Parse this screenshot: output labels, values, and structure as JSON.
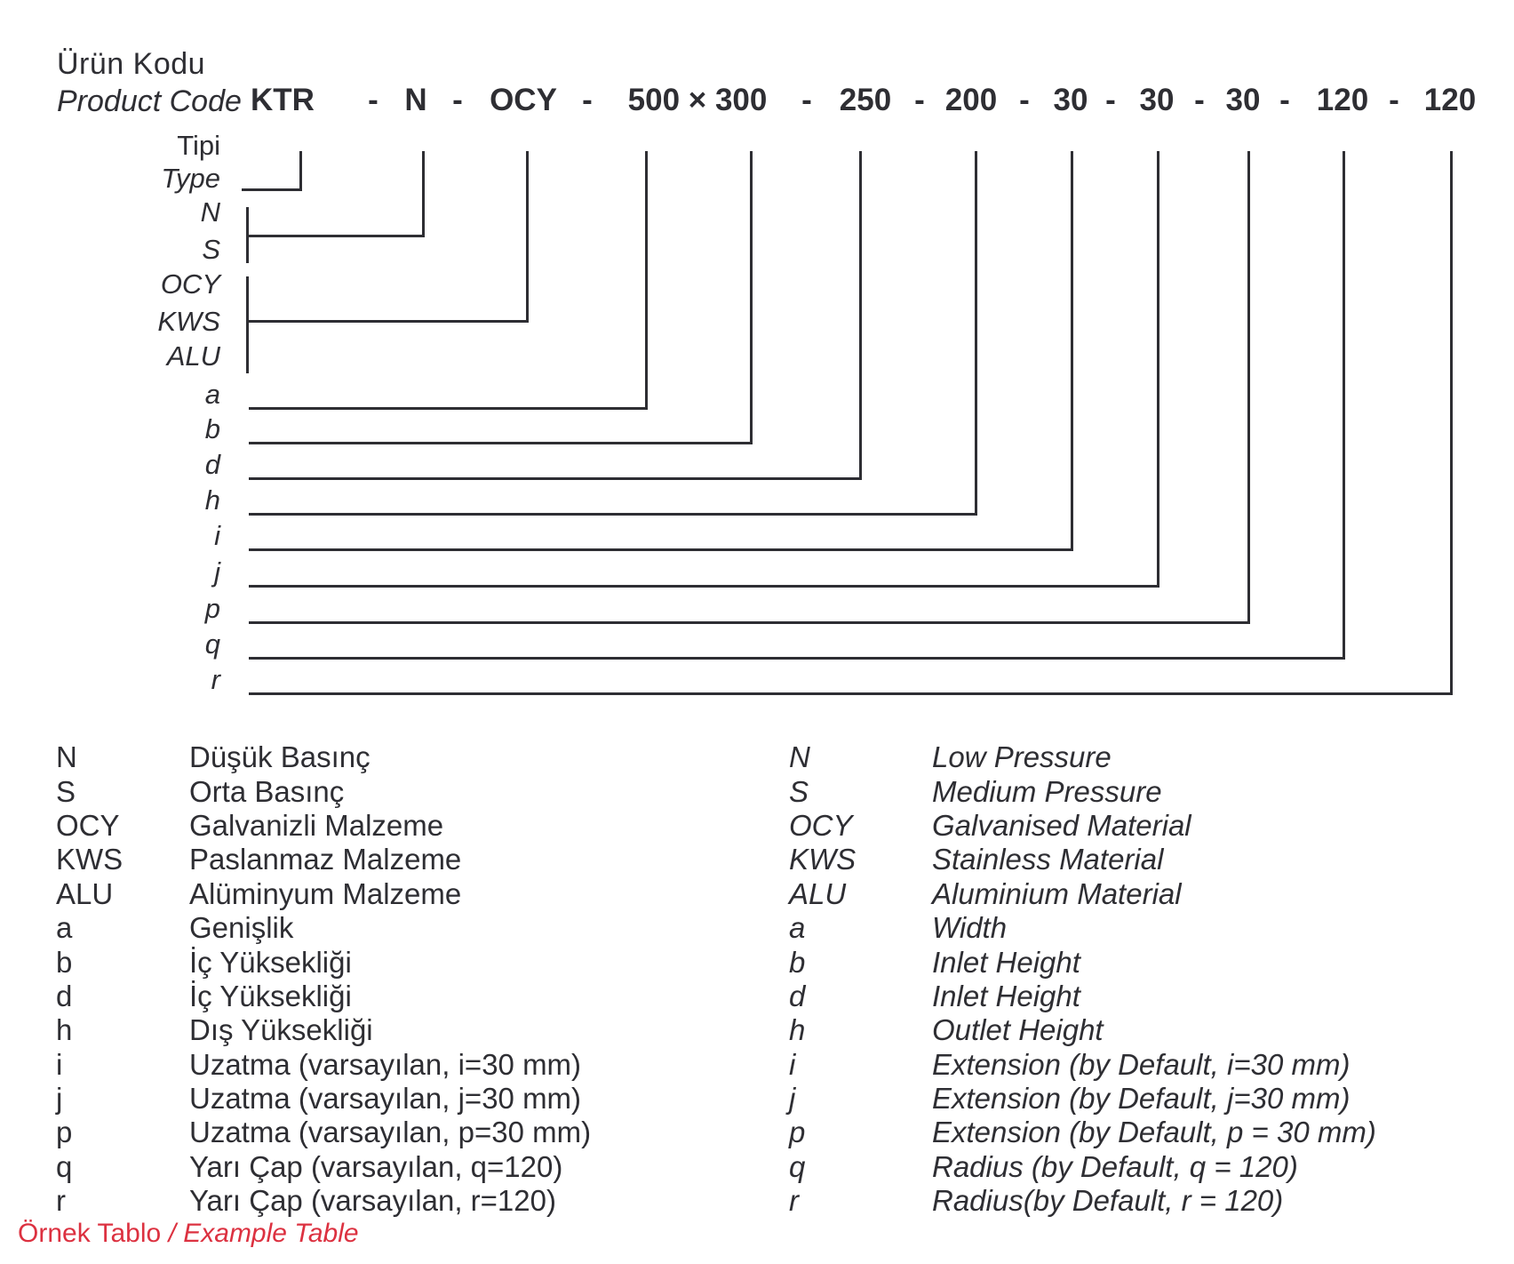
{
  "title": {
    "tr": "Ürün Kodu",
    "en": "Product Code"
  },
  "code": {
    "separator": "-",
    "segments": [
      "KTR",
      "N",
      "OCY",
      "500 × 300",
      "250",
      "200",
      "30",
      "30",
      "30",
      "120",
      "120"
    ]
  },
  "diagram": {
    "type_label": {
      "tr": "Tipi",
      "en": "Type"
    },
    "branch_labels": [
      "N",
      "S",
      "OCY",
      "KWS",
      "ALU",
      "a",
      "b",
      "d",
      "h",
      "i",
      "j",
      "p",
      "q",
      "r"
    ]
  },
  "legend": {
    "tr": [
      {
        "code": "N",
        "text": "Düşük Basınç"
      },
      {
        "code": "S",
        "text": "Orta Basınç"
      },
      {
        "code": "OCY",
        "text": "Galvanizli Malzeme"
      },
      {
        "code": "KWS",
        "text": "Paslanmaz Malzeme"
      },
      {
        "code": "ALU",
        "text": "Alüminyum Malzeme"
      },
      {
        "code": "a",
        "text": "Genişlik"
      },
      {
        "code": "b",
        "text": "İç Yüksekliği"
      },
      {
        "code": "d",
        "text": "İç Yüksekliği"
      },
      {
        "code": "h",
        "text": "Dış Yüksekliği"
      },
      {
        "code": "i",
        "text": "Uzatma (varsayılan, i=30 mm)"
      },
      {
        "code": "j",
        "text": "Uzatma (varsayılan, j=30 mm)"
      },
      {
        "code": "p",
        "text": "Uzatma (varsayılan, p=30 mm)"
      },
      {
        "code": "q",
        "text": "Yarı Çap (varsayılan, q=120)"
      },
      {
        "code": "r",
        "text": "Yarı Çap (varsayılan, r=120)"
      }
    ],
    "en": [
      {
        "code": "N",
        "text": "Low Pressure"
      },
      {
        "code": "S",
        "text": "Medium Pressure"
      },
      {
        "code": "OCY",
        "text": "Galvanised Material"
      },
      {
        "code": "KWS",
        "text": "Stainless Material"
      },
      {
        "code": "ALU",
        "text": "Aluminium Material"
      },
      {
        "code": "a",
        "text": "Width"
      },
      {
        "code": "b",
        "text": "Inlet Height"
      },
      {
        "code": "d",
        "text": "Inlet Height"
      },
      {
        "code": "h",
        "text": "Outlet Height"
      },
      {
        "code": "i",
        "text": "Extension (by Default, i=30 mm)"
      },
      {
        "code": "j",
        "text": "Extension (by Default, j=30 mm)"
      },
      {
        "code": "p",
        "text": "Extension (by Default, p = 30 mm)"
      },
      {
        "code": "q",
        "text": "Radius (by Default, q = 120)"
      },
      {
        "code": "r",
        "text": "Radius(by Default, r = 120)"
      }
    ]
  },
  "footer": {
    "tr": "Örnek Tablo",
    "sep": "/",
    "en": "Example Table"
  },
  "colors": {
    "ink": "#2e2e33",
    "accent_red": "#dc3140"
  }
}
